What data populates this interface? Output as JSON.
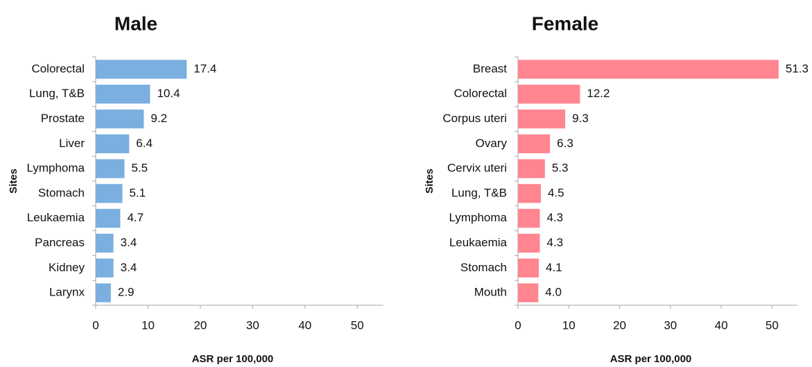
{
  "chart_data": [
    {
      "type": "hbar",
      "title": "Male",
      "xlabel": "ASR per 100,000",
      "ylabel": "Sites",
      "color": "#7aafe0",
      "categories": [
        "Colorectal",
        "Lung, T&B",
        "Prostate",
        "Liver",
        "Lymphoma",
        "Stomach",
        "Leukaemia",
        "Pancreas",
        "Kidney",
        "Larynx"
      ],
      "values": [
        17.4,
        10.4,
        9.2,
        6.4,
        5.5,
        5.1,
        4.7,
        3.4,
        3.4,
        2.9
      ],
      "value_labels": [
        "17.4",
        "10.4",
        "9.2",
        "6.4",
        "5.5",
        "5.1",
        "4.7",
        "3.4",
        "3.4",
        "2.9"
      ],
      "xlim": [
        0,
        55
      ],
      "xticks": [
        0,
        10,
        20,
        30,
        40,
        50
      ]
    },
    {
      "type": "hbar",
      "title": "Female",
      "xlabel": "ASR per 100,000",
      "ylabel": "Sites",
      "color": "#ff8591",
      "categories": [
        "Breast",
        "Colorectal",
        "Corpus uteri",
        "Ovary",
        "Cervix uteri",
        "Lung, T&B",
        "Lymphoma",
        "Leukaemia",
        "Stomach",
        "Mouth"
      ],
      "values": [
        51.3,
        12.2,
        9.3,
        6.3,
        5.3,
        4.5,
        4.3,
        4.3,
        4.1,
        4.0
      ],
      "value_labels": [
        "51.3",
        "12.2",
        "9.3",
        "6.3",
        "5.3",
        "4.5",
        "4.3",
        "4.3",
        "4.1",
        "4.0"
      ],
      "xlim": [
        0,
        55
      ],
      "xticks": [
        0,
        10,
        20,
        30,
        40,
        50
      ]
    }
  ]
}
